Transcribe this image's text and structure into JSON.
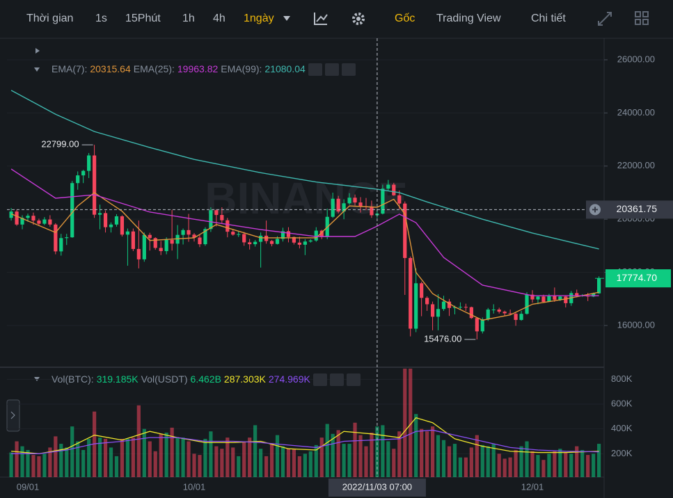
{
  "toolbar": {
    "items": [
      "Thời gian",
      "1s",
      "15Phút",
      "1h",
      "4h",
      "1ngày",
      "Gốc",
      "Trading View",
      "Chi tiết"
    ]
  },
  "chart_data": {
    "type": "candlestick",
    "watermark": "BINANCE",
    "up_color": "#0ecb81",
    "down_color": "#f6465d",
    "categories": [
      null,
      null,
      null,
      "09/01",
      null,
      null,
      null,
      null,
      null,
      null,
      null,
      null,
      null,
      null,
      null,
      null,
      null,
      null,
      null,
      null,
      null,
      null,
      null,
      null,
      null,
      null,
      null,
      null,
      null,
      null,
      null,
      null,
      null,
      "10/01",
      null,
      null,
      null,
      null,
      null,
      null,
      null,
      null,
      null,
      null,
      null,
      null,
      null,
      null,
      null,
      null,
      null,
      null,
      null,
      null,
      null,
      null,
      null,
      null,
      null,
      null,
      null,
      null,
      null,
      null,
      null,
      null,
      null,
      null,
      null,
      null,
      null,
      null,
      null,
      null,
      null,
      null,
      null,
      null,
      null,
      null,
      null,
      null,
      null,
      null,
      null,
      null,
      null,
      null,
      null,
      null,
      null,
      null,
      null,
      null,
      "12/01",
      null,
      null,
      null,
      null,
      null,
      null,
      null,
      null,
      null,
      null,
      null,
      null
    ],
    "ohlc": [
      [
        20050,
        20420,
        19950,
        20290
      ],
      [
        20290,
        20360,
        19750,
        19800
      ],
      [
        19800,
        20150,
        19620,
        20050
      ],
      [
        20050,
        20210,
        19900,
        20130
      ],
      [
        20130,
        20250,
        19790,
        19950
      ],
      [
        19950,
        20020,
        19750,
        19830
      ],
      [
        19830,
        20080,
        19780,
        19990
      ],
      [
        19990,
        20150,
        19720,
        19800
      ],
      [
        19800,
        19850,
        18680,
        18790
      ],
      [
        18790,
        19450,
        18630,
        19290
      ],
      [
        19290,
        19450,
        19030,
        19320
      ],
      [
        19320,
        21440,
        19300,
        21360
      ],
      [
        21360,
        21800,
        21110,
        21650
      ],
      [
        21650,
        21860,
        21360,
        21820
      ],
      [
        21820,
        22490,
        21550,
        22400
      ],
      [
        22400,
        22799,
        20050,
        20170
      ],
      [
        20170,
        20550,
        19620,
        20230
      ],
      [
        20230,
        20330,
        19500,
        19700
      ],
      [
        19700,
        19880,
        19500,
        19800
      ],
      [
        19800,
        20190,
        19720,
        20110
      ],
      [
        20110,
        20150,
        19350,
        19420
      ],
      [
        19420,
        19650,
        18250,
        19540
      ],
      [
        19540,
        19650,
        18800,
        18880
      ],
      [
        18880,
        19950,
        18150,
        18490
      ],
      [
        18490,
        19500,
        18400,
        19410
      ],
      [
        19410,
        19490,
        18820,
        19290
      ],
      [
        19290,
        19320,
        18850,
        18920
      ],
      [
        18920,
        19180,
        18650,
        18800
      ],
      [
        18800,
        19320,
        18680,
        19220
      ],
      [
        19220,
        20350,
        18820,
        19080
      ],
      [
        19080,
        19780,
        18500,
        19410
      ],
      [
        19410,
        19650,
        19050,
        19590
      ],
      [
        19590,
        20200,
        19150,
        19420
      ],
      [
        19420,
        19480,
        19160,
        19310
      ],
      [
        19310,
        19400,
        18950,
        19060
      ],
      [
        19060,
        19700,
        19000,
        19630
      ],
      [
        19630,
        20450,
        19520,
        20340
      ],
      [
        20340,
        20360,
        19730,
        20160
      ],
      [
        20160,
        20450,
        19850,
        19960
      ],
      [
        19960,
        20050,
        19320,
        19530
      ],
      [
        19530,
        19620,
        19380,
        19420
      ],
      [
        19420,
        19550,
        19330,
        19440
      ],
      [
        19440,
        19520,
        19000,
        19130
      ],
      [
        19130,
        19260,
        18860,
        19060
      ],
      [
        19060,
        19220,
        18970,
        19150
      ],
      [
        19150,
        19500,
        18180,
        19380
      ],
      [
        19380,
        19950,
        19080,
        19180
      ],
      [
        19180,
        19220,
        18980,
        19070
      ],
      [
        19070,
        19360,
        19050,
        19260
      ],
      [
        19260,
        19680,
        19160,
        19550
      ],
      [
        19550,
        19700,
        19130,
        19330
      ],
      [
        19330,
        19350,
        19050,
        19120
      ],
      [
        19120,
        19340,
        18900,
        19040
      ],
      [
        19040,
        19250,
        18650,
        19160
      ],
      [
        19160,
        19250,
        19120,
        19200
      ],
      [
        19200,
        19700,
        19150,
        19570
      ],
      [
        19570,
        19600,
        19250,
        19330
      ],
      [
        19330,
        20400,
        19250,
        20090
      ],
      [
        20090,
        21000,
        20050,
        20770
      ],
      [
        20770,
        20880,
        20220,
        20290
      ],
      [
        20290,
        20750,
        20000,
        20600
      ],
      [
        20600,
        20980,
        20550,
        20810
      ],
      [
        20810,
        20930,
        20520,
        20630
      ],
      [
        20630,
        20830,
        20250,
        20490
      ],
      [
        20490,
        20800,
        20340,
        20480
      ],
      [
        20480,
        20700,
        20050,
        20150
      ],
      [
        20150,
        20400,
        20050,
        20210
      ],
      [
        20210,
        21300,
        20180,
        21150
      ],
      [
        21150,
        21480,
        21080,
        21300
      ],
      [
        21300,
        21370,
        20880,
        20900
      ],
      [
        20900,
        21080,
        20380,
        20590
      ],
      [
        20590,
        20670,
        17150,
        18540
      ],
      [
        18540,
        18600,
        15590,
        15880
      ],
      [
        15880,
        18150,
        15750,
        17590
      ],
      [
        17590,
        17650,
        16350,
        17040
      ],
      [
        17040,
        17100,
        16550,
        16800
      ],
      [
        16800,
        16900,
        15820,
        16330
      ],
      [
        16330,
        17180,
        15820,
        16620
      ],
      [
        16620,
        17120,
        16550,
        16900
      ],
      [
        16900,
        17000,
        16360,
        16660
      ],
      [
        16660,
        16750,
        16420,
        16690
      ],
      [
        16690,
        16870,
        16620,
        16700
      ],
      [
        16700,
        16820,
        16550,
        16690
      ],
      [
        16690,
        16710,
        16250,
        16280
      ],
      [
        16280,
        16300,
        15476,
        15780
      ],
      [
        15780,
        16300,
        15700,
        16230
      ],
      [
        16230,
        16660,
        16170,
        16600
      ],
      [
        16600,
        16800,
        16450,
        16600
      ],
      [
        16600,
        16670,
        16450,
        16520
      ],
      [
        16520,
        16560,
        16360,
        16460
      ],
      [
        16460,
        16600,
        16400,
        16440
      ],
      [
        16440,
        16490,
        15990,
        16210
      ],
      [
        16210,
        16550,
        16180,
        16440
      ],
      [
        16440,
        17250,
        16410,
        17160
      ],
      [
        17160,
        17330,
        16860,
        16980
      ],
      [
        16980,
        17100,
        16800,
        17090
      ],
      [
        17090,
        17160,
        16860,
        16890
      ],
      [
        16890,
        17190,
        16880,
        17110
      ],
      [
        17110,
        17430,
        16890,
        16970
      ],
      [
        16970,
        17120,
        16920,
        17090
      ],
      [
        17090,
        17140,
        16680,
        16840
      ],
      [
        16840,
        17300,
        16740,
        17220
      ],
      [
        17220,
        17350,
        17060,
        17130
      ],
      [
        17130,
        17180,
        17080,
        17130
      ],
      [
        17130,
        17230,
        16920,
        17090
      ],
      [
        17090,
        17240,
        17070,
        17210
      ],
      [
        17210,
        17850,
        17190,
        17774.7
      ]
    ],
    "ylim": [
      14455,
      26811
    ],
    "yticks": [
      {
        "value": 16000,
        "label": "16000.00"
      },
      {
        "value": 18000,
        "label": "18000.00"
      },
      {
        "value": 20000,
        "label": "20000.00"
      },
      {
        "value": 22000,
        "label": "22000.00"
      },
      {
        "value": 24000,
        "label": "24000.00"
      },
      {
        "value": 26000,
        "label": "26000.00"
      }
    ],
    "ema": [
      {
        "name": "EMA(7):",
        "value_label": "20315.64",
        "color": "#e0953a",
        "x": [
          0,
          8,
          12,
          15,
          20,
          25,
          33,
          37,
          45,
          55,
          61,
          66,
          69,
          71,
          73,
          76,
          80,
          85,
          90,
          94,
          100,
          106
        ],
        "values": [
          20200,
          19500,
          20500,
          21000,
          20300,
          19200,
          19300,
          19800,
          19300,
          19300,
          20500,
          20450,
          20750,
          20200,
          18000,
          17200,
          16700,
          16200,
          16400,
          16800,
          17000,
          17250
        ]
      },
      {
        "name": "EMA(25):",
        "value_label": "19963.82",
        "color": "#c53ad6",
        "x": [
          0,
          8,
          15,
          25,
          33,
          45,
          55,
          62,
          66,
          70,
          73,
          78,
          85,
          94,
          106
        ],
        "values": [
          21890,
          20790,
          20920,
          20270,
          20000,
          19610,
          19350,
          19350,
          19740,
          20190,
          19870,
          18560,
          17520,
          17120,
          17120
        ]
      },
      {
        "name": "EMA(99):",
        "value_label": "21080.04",
        "color": "#3fb8af",
        "x": [
          0,
          8,
          15,
          25,
          33,
          45,
          55,
          66,
          70,
          75,
          85,
          94,
          106
        ],
        "values": [
          24850,
          23950,
          23300,
          22700,
          22250,
          21750,
          21400,
          21130,
          21000,
          20650,
          20000,
          19480,
          18880
        ]
      }
    ],
    "high_label": {
      "value": 22799,
      "label": "22799.00"
    },
    "low_label": {
      "value": 15476,
      "label": "15476.00"
    },
    "crosshair": {
      "x": 66,
      "label": "2022/11/03 07:00",
      "price": 20361.75
    },
    "last_price": {
      "value": 17774.7,
      "label": "17774.70"
    },
    "volume": {
      "legend": [
        {
          "text": "Vol(BTC):",
          "color": "#848e9c"
        },
        {
          "text": "319.185K",
          "color": "#0ecb81"
        },
        {
          "text": "Vol(USDT)",
          "color": "#848e9c"
        },
        {
          "text": "6.462B",
          "color": "#0ecb81"
        },
        {
          "text": "287.303K",
          "color": "#f0e62b"
        },
        {
          "text": "274.969K",
          "color": "#8c4ff5"
        }
      ],
      "ylim": [
        0,
        886000
      ],
      "yticks": [
        {
          "value": 200000,
          "label": "200K"
        },
        {
          "value": 400000,
          "label": "400K"
        },
        {
          "value": 600000,
          "label": "600K"
        },
        {
          "value": 800000,
          "label": "800K"
        }
      ],
      "values": [
        210000,
        300000,
        260000,
        230000,
        190000,
        180000,
        200000,
        250000,
        340000,
        280000,
        250000,
        420000,
        300000,
        230000,
        320000,
        540000,
        330000,
        320000,
        250000,
        180000,
        320000,
        320000,
        330000,
        590000,
        400000,
        300000,
        220000,
        360000,
        370000,
        410000,
        330000,
        330000,
        300000,
        200000,
        190000,
        320000,
        380000,
        260000,
        240000,
        330000,
        250000,
        180000,
        300000,
        330000,
        430000,
        240000,
        180000,
        280000,
        350000,
        260000,
        240000,
        240000,
        180000,
        200000,
        220000,
        270000,
        330000,
        440000,
        360000,
        390000,
        280000,
        280000,
        450000,
        350000,
        260000,
        370000,
        420000,
        430000,
        300000,
        240000,
        380000,
        1010000,
        1000000,
        520000,
        400000,
        380000,
        420000,
        350000,
        310000,
        260000,
        280000,
        170000,
        170000,
        250000,
        350000,
        270000,
        260000,
        280000,
        200000,
        160000,
        170000,
        230000,
        260000,
        300000,
        220000,
        190000,
        150000,
        200000,
        220000,
        240000,
        210000,
        200000,
        260000,
        230000,
        190000,
        200000,
        280000
      ],
      "ma": [
        {
          "color": "#f0e62b",
          "x": [
            0,
            5,
            10,
            15,
            20,
            25,
            30,
            35,
            40,
            45,
            50,
            55,
            60,
            65,
            70,
            73,
            76,
            80,
            85,
            90,
            95,
            100,
            106
          ],
          "values": [
            220000,
            200000,
            240000,
            350000,
            310000,
            380000,
            330000,
            290000,
            290000,
            300000,
            240000,
            230000,
            380000,
            360000,
            330000,
            490000,
            450000,
            320000,
            260000,
            220000,
            210000,
            210000,
            220000
          ]
        },
        {
          "color": "#8c4ff5",
          "x": [
            0,
            5,
            10,
            15,
            20,
            25,
            30,
            35,
            40,
            45,
            50,
            55,
            60,
            65,
            70,
            73,
            76,
            80,
            85,
            90,
            95,
            100,
            106
          ],
          "values": [
            200000,
            200000,
            230000,
            280000,
            300000,
            330000,
            330000,
            300000,
            300000,
            290000,
            270000,
            250000,
            300000,
            310000,
            320000,
            380000,
            390000,
            350000,
            300000,
            250000,
            230000,
            220000,
            215000
          ]
        }
      ]
    }
  }
}
